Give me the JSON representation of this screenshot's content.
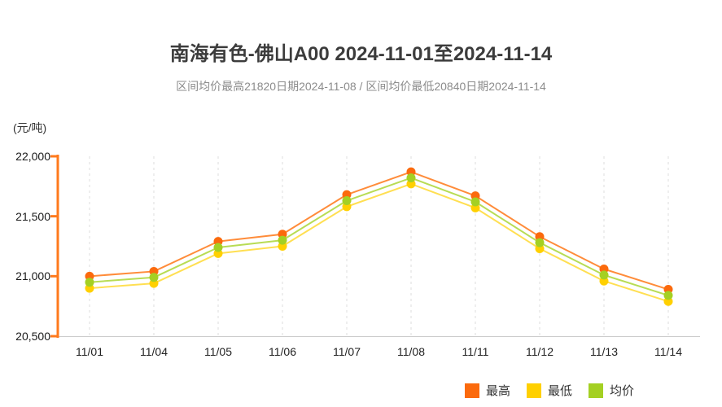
{
  "page": {
    "background": "#ffffff"
  },
  "chart_data": {
    "type": "line",
    "title": "南海有色-佛山A00 2024-11-01至2024-11-14",
    "subtitle": "区间均价最高21820日期2024-11-08 / 区间均价最低20840日期2024-11-14",
    "unit_label": "(元/吨)",
    "categories": [
      "11/01",
      "11/04",
      "11/05",
      "11/06",
      "11/07",
      "11/08",
      "11/11",
      "11/12",
      "11/13",
      "11/14"
    ],
    "series": [
      {
        "key": "high",
        "name": "最高",
        "color": "#fb6a0d",
        "line_color": "#ff8c3a",
        "values": [
          21000,
          21040,
          21290,
          21350,
          21680,
          21870,
          21670,
          21330,
          21060,
          20890
        ]
      },
      {
        "key": "low",
        "name": "最低",
        "color": "#ffd000",
        "line_color": "#ffdf52",
        "values": [
          20900,
          20940,
          21190,
          21250,
          21580,
          21770,
          21570,
          21230,
          20960,
          20790
        ]
      },
      {
        "key": "avg",
        "name": "均价",
        "color": "#a4d023",
        "line_color": "#b8dc55",
        "values": [
          20950,
          20990,
          21240,
          21300,
          21630,
          21820,
          21620,
          21280,
          21010,
          20840
        ]
      }
    ],
    "ylim": [
      20500,
      22000
    ],
    "y_ticks": [
      22000,
      21500,
      21000,
      20500
    ],
    "y_tick_labels": [
      "22,000",
      "21,500",
      "21,000",
      "20,500"
    ],
    "axis_color": "#ff7a1c",
    "x_axis_line_color": "#cccccc",
    "grid": "vertical-dashed",
    "grid_color": "#dcdcdc",
    "legend_position": "bottom-right"
  }
}
